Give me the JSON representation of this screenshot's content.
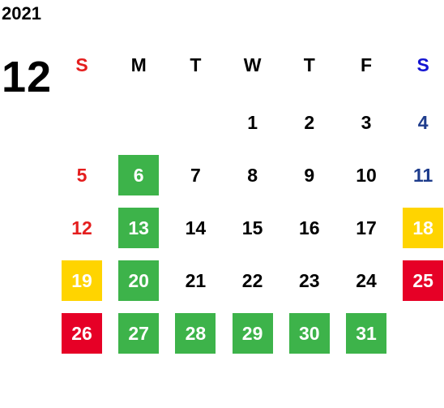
{
  "year": "2021",
  "month": "12",
  "weekdays": [
    "S",
    "M",
    "T",
    "W",
    "T",
    "F",
    "S"
  ],
  "weekday_colors": [
    "#e41e1e",
    "#000000",
    "#000000",
    "#000000",
    "#000000",
    "#000000",
    "#1414d2"
  ],
  "day_colors": [
    "#e41e1e",
    "#000000",
    "#000000",
    "#000000",
    "#000000",
    "#000000",
    "#1e3c8c"
  ],
  "weeks": [
    [
      null,
      null,
      null,
      "1",
      "2",
      "3",
      "4"
    ],
    [
      "5",
      {
        "label": "6",
        "bg": "#3db34a"
      },
      "7",
      "8",
      "9",
      "10",
      "11"
    ],
    [
      "12",
      {
        "label": "13",
        "bg": "#3db34a"
      },
      "14",
      "15",
      "16",
      "17",
      {
        "label": "18",
        "bg": "#ffd400"
      }
    ],
    [
      {
        "label": "19",
        "bg": "#ffd400"
      },
      {
        "label": "20",
        "bg": "#3db34a"
      },
      "21",
      "22",
      "23",
      "24",
      {
        "label": "25",
        "bg": "#e60026"
      }
    ],
    [
      {
        "label": "26",
        "bg": "#e60026"
      },
      {
        "label": "27",
        "bg": "#3db34a"
      },
      {
        "label": "28",
        "bg": "#3db34a"
      },
      {
        "label": "29",
        "bg": "#3db34a"
      },
      {
        "label": "30",
        "bg": "#3db34a"
      },
      {
        "label": "31",
        "bg": "#3db34a"
      },
      null
    ]
  ]
}
